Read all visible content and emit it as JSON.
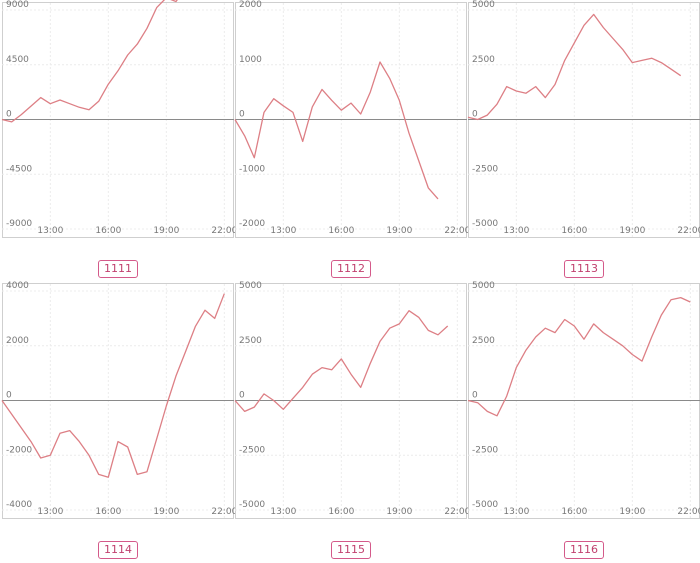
{
  "chart_data": [
    {
      "type": "line",
      "label": "1111",
      "yticks": [
        9000,
        4500,
        0,
        -4500,
        -9000
      ],
      "ylim": [
        -9000,
        9000
      ],
      "xticks": [
        "13:00",
        "16:00",
        "19:00",
        "22:00"
      ],
      "xtick_values": [
        13,
        16,
        19,
        22
      ],
      "xlim": [
        10.5,
        22.5
      ],
      "grid": true,
      "series": [
        {
          "x": [
            10.5,
            11,
            11.5,
            12,
            12.5,
            13,
            13.5,
            14,
            14.5,
            15,
            15.5,
            16,
            16.5,
            17,
            17.5,
            18,
            18.5,
            19,
            19.5,
            20,
            20.5,
            21,
            21.5
          ],
          "y": [
            0,
            -200,
            400,
            1100,
            1800,
            1300,
            1600,
            1300,
            1000,
            800,
            1500,
            2900,
            4000,
            5300,
            6200,
            7500,
            9200,
            10000,
            9700,
            10800,
            10400,
            10100,
            10300
          ]
        }
      ]
    },
    {
      "type": "line",
      "label": "1112",
      "yticks": [
        2000,
        1000,
        0,
        -1000,
        -2000
      ],
      "ylim": [
        -2000,
        2000
      ],
      "xticks": [
        "13:00",
        "16:00",
        "19:00",
        "22:00"
      ],
      "xtick_values": [
        13,
        16,
        19,
        22
      ],
      "xlim": [
        10.5,
        22.5
      ],
      "grid": true,
      "series": [
        {
          "x": [
            10.5,
            11,
            11.5,
            12,
            12.5,
            13,
            13.5,
            14,
            14.5,
            15,
            15.5,
            16,
            16.5,
            17,
            17.5,
            18,
            18.5,
            19,
            19.5,
            20,
            20.5,
            21
          ],
          "y": [
            0,
            -300,
            -700,
            130,
            380,
            250,
            130,
            -400,
            230,
            550,
            350,
            170,
            300,
            100,
            500,
            1050,
            750,
            350,
            -250,
            -750,
            -1250,
            -1450
          ]
        }
      ]
    },
    {
      "type": "line",
      "label": "1113",
      "yticks": [
        5000,
        2500,
        0,
        -2500,
        -5000
      ],
      "ylim": [
        -5000,
        5000
      ],
      "xticks": [
        "13:00",
        "16:00",
        "19:00",
        "22:00"
      ],
      "xtick_values": [
        13,
        16,
        19,
        22
      ],
      "xlim": [
        10.5,
        22.5
      ],
      "grid": true,
      "series": [
        {
          "x": [
            10.5,
            11,
            11.5,
            12,
            12.5,
            13,
            13.5,
            14,
            14.5,
            15,
            15.5,
            16,
            16.5,
            17,
            17.5,
            18,
            18.5,
            19,
            19.5,
            20,
            20.5,
            21,
            21.5
          ],
          "y": [
            100,
            0,
            200,
            700,
            1500,
            1300,
            1200,
            1500,
            1000,
            1600,
            2700,
            3500,
            4300,
            4800,
            4200,
            3700,
            3200,
            2600,
            2700,
            2800,
            2600,
            2300,
            2000
          ]
        }
      ]
    },
    {
      "type": "line",
      "label": "1114",
      "yticks": [
        4000,
        2000,
        0,
        -2000,
        -4000
      ],
      "ylim": [
        -4000,
        4000
      ],
      "xticks": [
        "13:00",
        "16:00",
        "19:00",
        "22:00"
      ],
      "xtick_values": [
        13,
        16,
        19,
        22
      ],
      "xlim": [
        10.5,
        22.5
      ],
      "grid": true,
      "series": [
        {
          "x": [
            10.5,
            11,
            11.5,
            12,
            12.5,
            13,
            13.5,
            14,
            14.5,
            15,
            15.5,
            16,
            16.5,
            17,
            17.5,
            18,
            18.5,
            19,
            19.5,
            20,
            20.5,
            21,
            21.5,
            22
          ],
          "y": [
            0,
            -500,
            -1000,
            -1500,
            -2100,
            -2000,
            -1200,
            -1100,
            -1500,
            -2000,
            -2700,
            -2800,
            -1500,
            -1700,
            -2700,
            -2600,
            -1400,
            -200,
            900,
            1800,
            2700,
            3300,
            3000,
            3900
          ]
        }
      ]
    },
    {
      "type": "line",
      "label": "1115",
      "yticks": [
        5000,
        2500,
        0,
        -2500,
        -5000
      ],
      "ylim": [
        -5000,
        5000
      ],
      "xticks": [
        "13:00",
        "16:00",
        "19:00",
        "22:00"
      ],
      "xtick_values": [
        13,
        16,
        19,
        22
      ],
      "xlim": [
        10.5,
        22.5
      ],
      "grid": true,
      "series": [
        {
          "x": [
            10.5,
            11,
            11.5,
            12,
            12.5,
            13,
            13.5,
            14,
            14.5,
            15,
            15.5,
            16,
            16.5,
            17,
            17.5,
            18,
            18.5,
            19,
            19.5,
            20,
            20.5,
            21,
            21.5
          ],
          "y": [
            0,
            -500,
            -300,
            300,
            0,
            -400,
            100,
            600,
            1200,
            1500,
            1400,
            1900,
            1200,
            600,
            1700,
            2700,
            3300,
            3500,
            4100,
            3800,
            3200,
            3000,
            3400
          ]
        }
      ]
    },
    {
      "type": "line",
      "label": "1116",
      "yticks": [
        5000,
        2500,
        0,
        -2500,
        -5000
      ],
      "ylim": [
        -5000,
        5000
      ],
      "xticks": [
        "13:00",
        "16:00",
        "19:00",
        "22:00"
      ],
      "xtick_values": [
        13,
        16,
        19,
        22
      ],
      "xlim": [
        10.5,
        22.5
      ],
      "grid": true,
      "series": [
        {
          "x": [
            10.5,
            11,
            11.5,
            12,
            12.5,
            13,
            13.5,
            14,
            14.5,
            15,
            15.5,
            16,
            16.5,
            17,
            17.5,
            18,
            18.5,
            19,
            19.5,
            20,
            20.5,
            21,
            21.5,
            22
          ],
          "y": [
            0,
            -100,
            -500,
            -700,
            200,
            1500,
            2300,
            2900,
            3300,
            3100,
            3700,
            3400,
            2800,
            3500,
            3100,
            2800,
            2500,
            2100,
            1800,
            2900,
            3900,
            4600,
            4700,
            4500
          ]
        }
      ]
    }
  ],
  "accent_line_color": "#dd7f85",
  "badge_color": "#d45a8a"
}
